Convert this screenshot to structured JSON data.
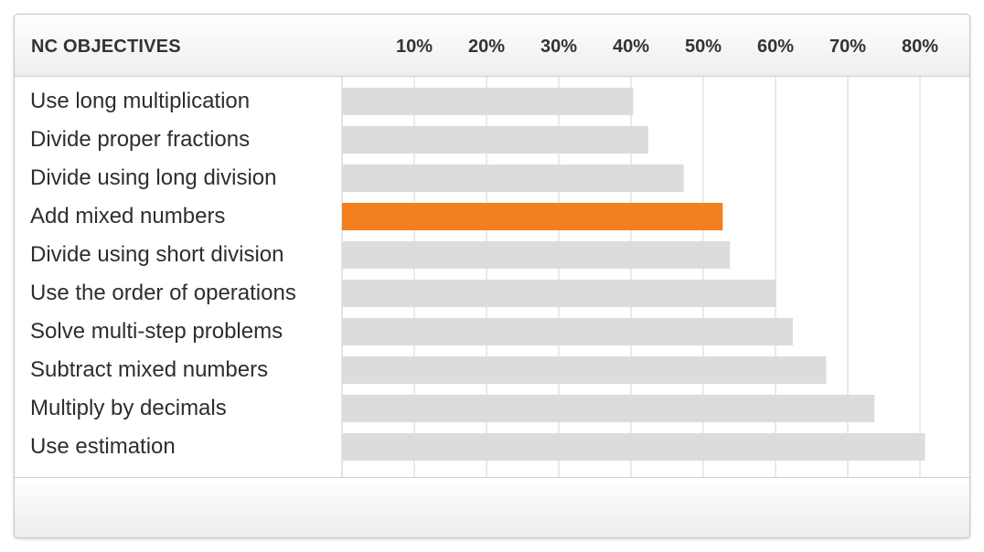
{
  "header": {
    "title": "NC OBJECTIVES"
  },
  "chart_data": {
    "type": "bar",
    "orientation": "horizontal",
    "title": "",
    "xlabel": "",
    "ylabel": "NC OBJECTIVES",
    "xlim": [
      0,
      82
    ],
    "ticks": [
      10,
      20,
      30,
      40,
      50,
      60,
      70,
      80
    ],
    "tick_labels": [
      "10%",
      "20%",
      "30%",
      "40%",
      "50%",
      "60%",
      "70%",
      "80%"
    ],
    "grid": true,
    "categories": [
      "Use long multiplication",
      "Divide proper fractions",
      "Divide using long division",
      "Add mixed numbers",
      "Divide using short division",
      "Use the order of operations",
      "Solve multi-step problems",
      "Subtract mixed numbers",
      "Multiply by decimals",
      "Use estimation"
    ],
    "values": [
      40.3,
      42.4,
      47.3,
      52.7,
      53.7,
      60.1,
      62.4,
      67.0,
      73.7,
      80.7
    ],
    "highlight_index": 3,
    "colors": {
      "bar": "#dcdcdc",
      "highlight": "#f47f20",
      "grid": "#e4e4e4"
    }
  }
}
